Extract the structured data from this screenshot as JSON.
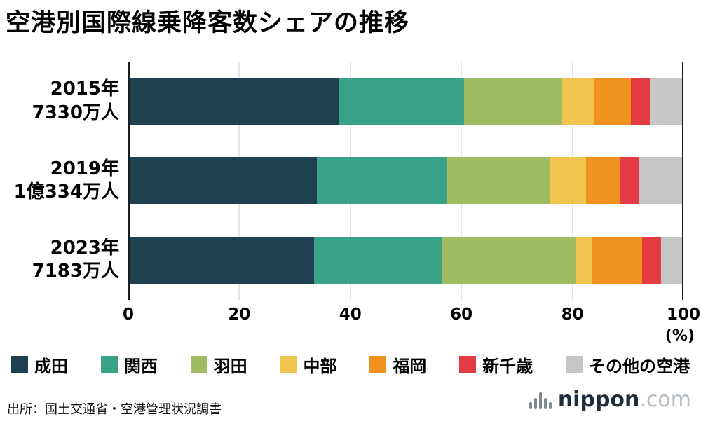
{
  "title": "空港別国際線乗降客数シェアの推移",
  "source": "出所：国土交通省・空港管理状況調書",
  "logo": {
    "icon": "signal-bars-icon",
    "name": "nippon",
    "suffix": ".com"
  },
  "chart_data": {
    "type": "bar",
    "stacked": true,
    "orientation": "horizontal",
    "title": "空港別国際線乗降客数シェアの推移",
    "xlabel": "(%)",
    "x_unit": "(%)",
    "xlim": [
      0,
      100
    ],
    "x_ticks": [
      0,
      20,
      40,
      60,
      80,
      100
    ],
    "grid": true,
    "legend_position": "bottom",
    "categories": [
      {
        "year": "2015年",
        "passengers": "7330万人"
      },
      {
        "year": "2019年",
        "passengers": "1億334万人"
      },
      {
        "year": "2023年",
        "passengers": "7183万人"
      }
    ],
    "series": [
      {
        "name": "成田",
        "color": "#1f4051",
        "values": [
          38,
          34,
          33.5
        ]
      },
      {
        "name": "関西",
        "color": "#3aa287",
        "values": [
          22.5,
          23.5,
          23
        ]
      },
      {
        "name": "羽田",
        "color": "#9fbc62",
        "values": [
          17.5,
          18.5,
          24
        ]
      },
      {
        "name": "中部",
        "color": "#f1c34f",
        "values": [
          6,
          6.5,
          3
        ]
      },
      {
        "name": "福岡",
        "color": "#f0921d",
        "values": [
          6.5,
          6,
          9
        ]
      },
      {
        "name": "新千歳",
        "color": "#e23b41",
        "values": [
          3.5,
          3.5,
          3.5
        ]
      },
      {
        "name": "その他の空港",
        "color": "#c5c6c6",
        "values": [
          6,
          8,
          4
        ]
      }
    ]
  }
}
